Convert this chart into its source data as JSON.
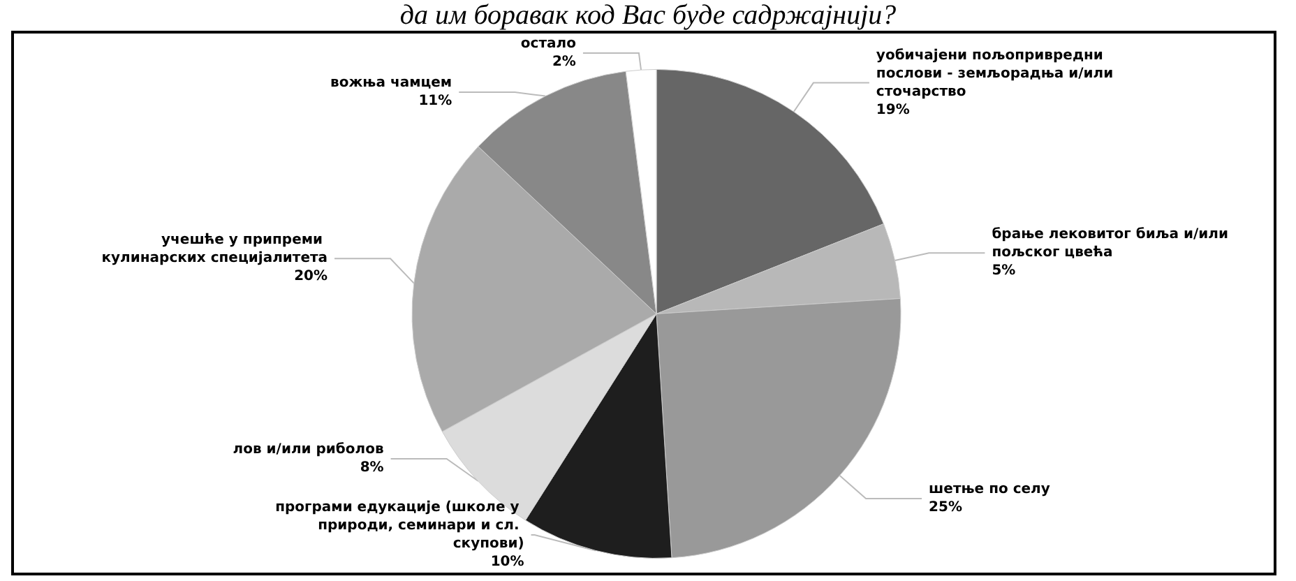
{
  "chart_data": {
    "type": "pie",
    "title": "да им боравак код Вас буде садржајнији?",
    "categories": [
      "уобичајени пољопривредни послови - земљорадња и/или сточарство",
      "брање лековитог биља и/или пољског цвећа",
      "шетње по селу",
      "програми едукације (школе у природи, семинари и сл. скупови)",
      "лов и/или риболов",
      "учешће у припреми кулинарских специјалитета",
      "вожња чамцем",
      "остало"
    ],
    "values": [
      19,
      5,
      25,
      10,
      8,
      20,
      11,
      2
    ],
    "colors": [
      "#666666",
      "#b8b8b8",
      "#999999",
      "#1e1e1e",
      "#dcdcdc",
      "#aaaaaa",
      "#888888",
      "#ffffff"
    ],
    "value_labels": [
      "19%",
      "5%",
      "25%",
      "10%",
      "8%",
      "20%",
      "11%",
      "2%"
    ],
    "legend": false
  }
}
